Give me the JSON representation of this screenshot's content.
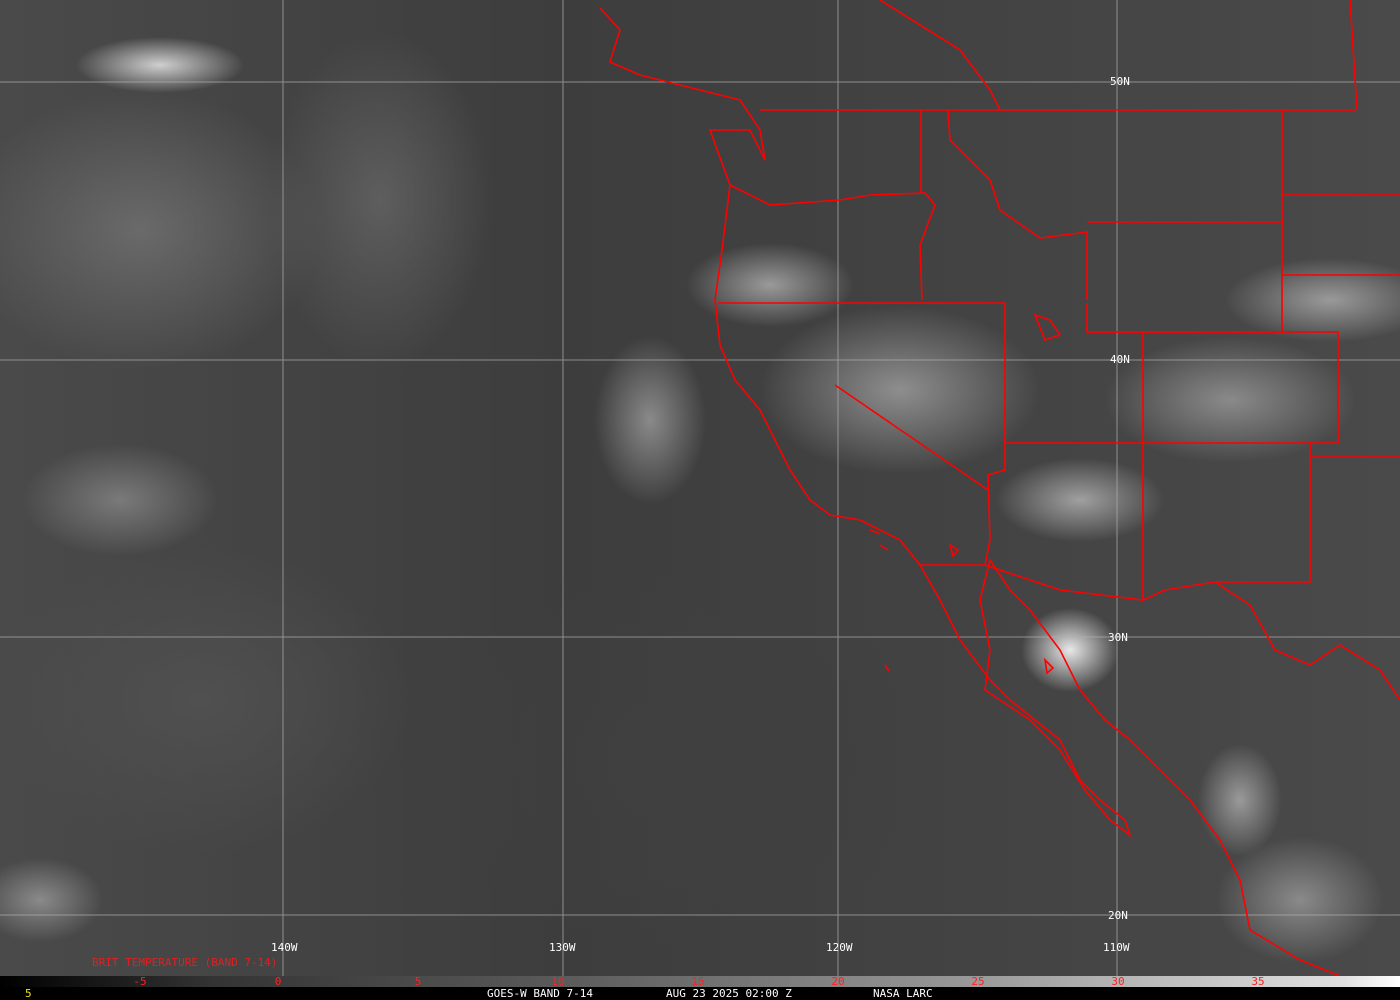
{
  "map": {
    "latitude_labels": [
      "50N",
      "40N",
      "30N",
      "20N"
    ],
    "longitude_labels": [
      "140W",
      "130W",
      "120W",
      "110W"
    ],
    "border_color": "#ff0000",
    "grid_color": "#b0b0b0"
  },
  "colorbar": {
    "title": "BRIT TEMPERATURE (BAND 7-14)",
    "ticks": [
      "-5",
      "0",
      "5",
      "10",
      "15",
      "20",
      "25",
      "30",
      "35"
    ],
    "tick_color": "#ff2020"
  },
  "footer": {
    "left_value": "5",
    "satellite": "GOES-W BAND 7-14",
    "datetime": "AUG 23 2025 02:00 Z",
    "credit": "NASA LARC"
  }
}
